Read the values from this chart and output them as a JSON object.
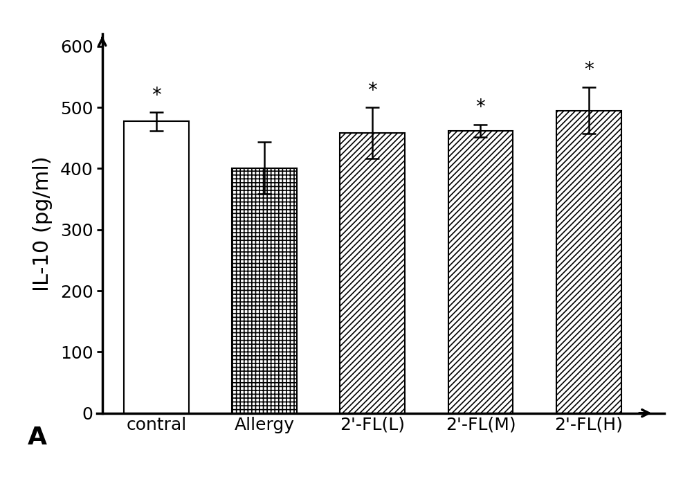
{
  "categories": [
    "contral",
    "Allergy",
    "2'-FL(L)",
    "2'-FL(M)",
    "2'-FL(H)"
  ],
  "values": [
    477,
    401,
    458,
    462,
    495
  ],
  "errors": [
    15,
    42,
    42,
    10,
    38
  ],
  "has_asterisk": [
    true,
    false,
    true,
    true,
    true
  ],
  "ylabel": "IL-10 (pg/ml)",
  "ylim": [
    0,
    600
  ],
  "yticks": [
    0,
    100,
    200,
    300,
    400,
    500,
    600
  ],
  "bar_width": 0.6,
  "background_color": "#ffffff",
  "bar_edge_color": "#000000",
  "label_A": "A",
  "asterisk_fontsize": 20,
  "ylabel_fontsize": 22,
  "tick_fontsize": 18,
  "label_A_fontsize": 26
}
